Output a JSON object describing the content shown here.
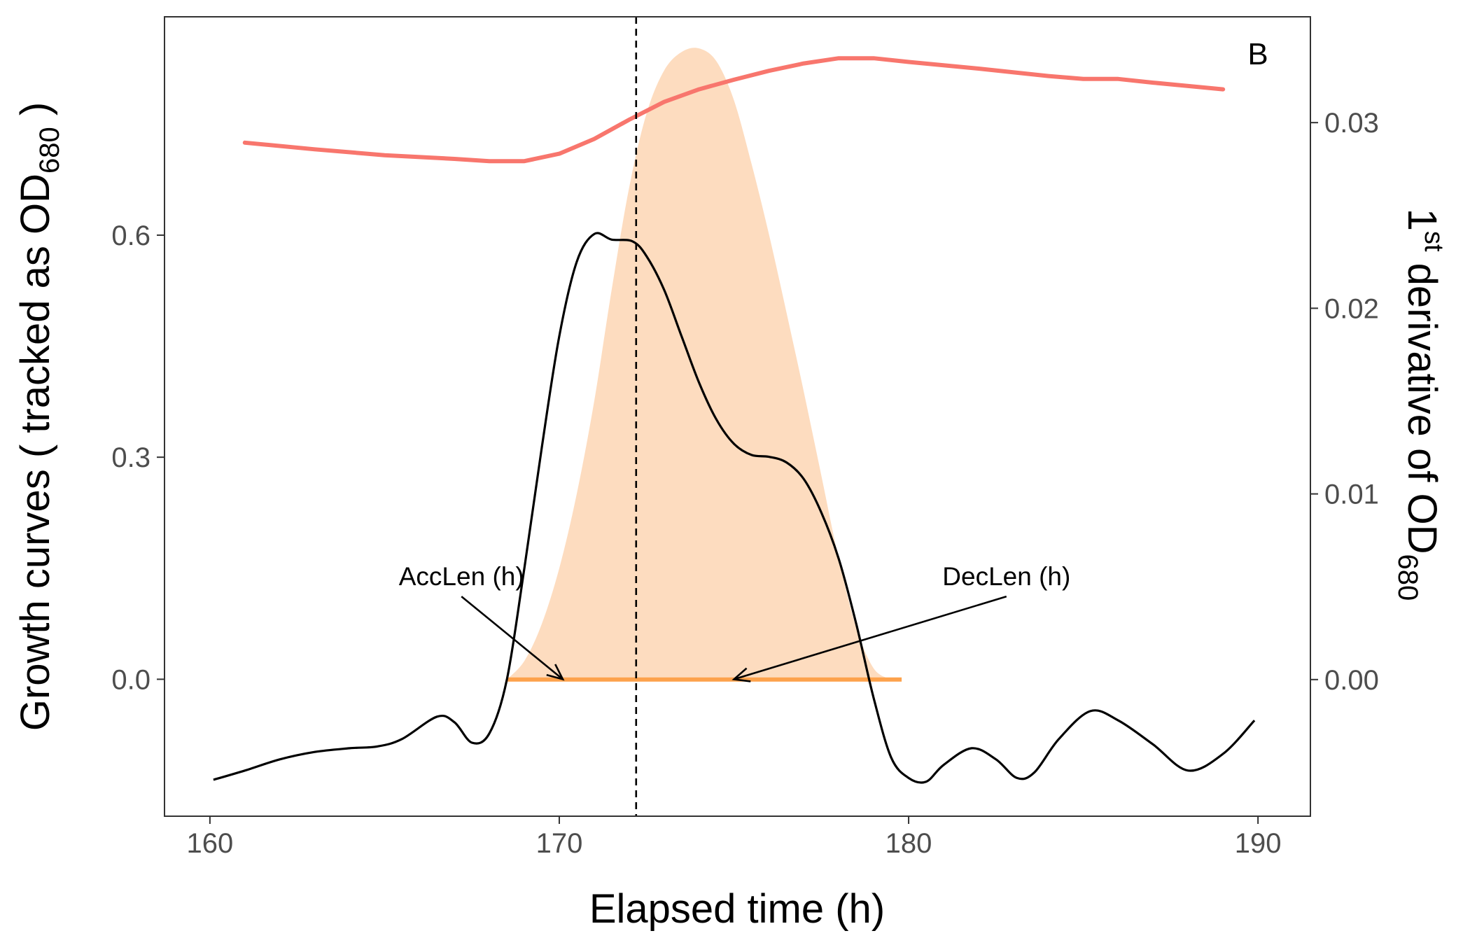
{
  "chart_data": {
    "type": "line",
    "panel_tag": "B",
    "xlabel": "Elapsed time (h)",
    "ylabel_left": {
      "text": "Growth curves ( tracked as OD",
      "sub": "680",
      "close": " )"
    },
    "ylabel_right": {
      "pre": "1",
      "sup": "st",
      "text": " derivative of OD",
      "sub": "680"
    },
    "xlim": [
      158.7,
      191.5
    ],
    "ylim_left": [
      -0.185,
      0.895
    ],
    "ylim_right": [
      -0.00736,
      0.0357
    ],
    "x_ticks": [
      160,
      170,
      180,
      190
    ],
    "x_tick_labels": [
      "160",
      "170",
      "180",
      "190"
    ],
    "y_left_ticks": [
      0.0,
      0.3,
      0.6
    ],
    "y_left_tick_labels": [
      "0.0",
      "0.3",
      "0.6"
    ],
    "y_right_ticks": [
      0.0,
      0.01,
      0.02,
      0.03
    ],
    "y_right_tick_labels": [
      "0.00",
      "0.01",
      "0.02",
      "0.03"
    ],
    "grid": false,
    "vline_x": 172.2,
    "colors": {
      "growth": "#F8766D",
      "derivative": "#000000",
      "fill": "#FDDCBF",
      "segment": "#FDA24C",
      "vline": "#000000",
      "frame": "#333333"
    },
    "series": [
      {
        "axis": "left",
        "x": [
          161.0,
          163.0,
          165.0,
          167.0,
          168.0,
          169.0,
          170.0,
          171.0,
          172.0,
          173.0,
          174.0,
          175.0,
          176.0,
          177.0,
          178.0,
          179.0,
          180.0,
          182.0,
          184.0,
          185.0,
          186.0,
          187.0,
          189.0
        ],
        "y": [
          0.725,
          0.716,
          0.708,
          0.703,
          0.7,
          0.7,
          0.71,
          0.73,
          0.756,
          0.78,
          0.797,
          0.81,
          0.822,
          0.832,
          0.839,
          0.839,
          0.834,
          0.825,
          0.815,
          0.811,
          0.811,
          0.806,
          0.797
        ]
      },
      {
        "axis": "right",
        "x": [
          160.1,
          161.0,
          162.0,
          163.0,
          164.0,
          164.8,
          165.5,
          166.5,
          167.0,
          167.5,
          168.0,
          168.5,
          169.0,
          169.5,
          170.0,
          170.5,
          171.0,
          171.5,
          172.1,
          172.5,
          173.0,
          173.5,
          174.0,
          174.5,
          175.0,
          175.5,
          176.0,
          176.5,
          177.0,
          177.5,
          178.0,
          178.5,
          179.0,
          179.5,
          180.0,
          180.5,
          181.0,
          181.8,
          182.5,
          183.1,
          183.6,
          184.3,
          185.2,
          186.0,
          187.0,
          188.0,
          189.0,
          189.9
        ],
        "y": [
          -0.0054,
          -0.0049,
          -0.0043,
          -0.0039,
          -0.0037,
          -0.0036,
          -0.0032,
          -0.002,
          -0.0023,
          -0.0034,
          -0.0029,
          0.0,
          0.006,
          0.0125,
          0.0185,
          0.0225,
          0.024,
          0.0237,
          0.0236,
          0.0228,
          0.021,
          0.0185,
          0.016,
          0.014,
          0.0127,
          0.0121,
          0.012,
          0.0117,
          0.0108,
          0.009,
          0.0065,
          0.003,
          -0.001,
          -0.0042,
          -0.0053,
          -0.0055,
          -0.0046,
          -0.0037,
          -0.0043,
          -0.0053,
          -0.005,
          -0.0032,
          -0.0017,
          -0.0022,
          -0.0035,
          -0.0049,
          -0.004,
          -0.0022
        ]
      },
      {
        "axis": "right",
        "fill": true,
        "x": [
          168.5,
          169.0,
          169.5,
          170.0,
          170.5,
          171.0,
          171.5,
          172.0,
          172.5,
          173.0,
          173.5,
          174.0,
          174.5,
          175.0,
          175.5,
          176.0,
          176.5,
          177.0,
          177.5,
          178.0,
          178.5,
          179.0,
          179.5
        ],
        "y": [
          0.0,
          0.001,
          0.003,
          0.006,
          0.01,
          0.015,
          0.021,
          0.0265,
          0.0305,
          0.0328,
          0.0338,
          0.034,
          0.0333,
          0.0312,
          0.0278,
          0.024,
          0.0198,
          0.0155,
          0.011,
          0.0065,
          0.0028,
          0.0006,
          0.0
        ]
      }
    ],
    "segment": {
      "x1": 168.5,
      "x2": 179.8,
      "y": 0.0
    },
    "annotations": [
      {
        "label": "AccLen (h)",
        "text_x": 167.2,
        "text_y": 0.127,
        "arrow_to_x": 170.1,
        "arrow_to_y": 0.0
      },
      {
        "label": "DecLen (h)",
        "text_x": 182.8,
        "text_y": 0.127,
        "arrow_to_x": 175.0,
        "arrow_to_y": 0.0
      }
    ]
  }
}
